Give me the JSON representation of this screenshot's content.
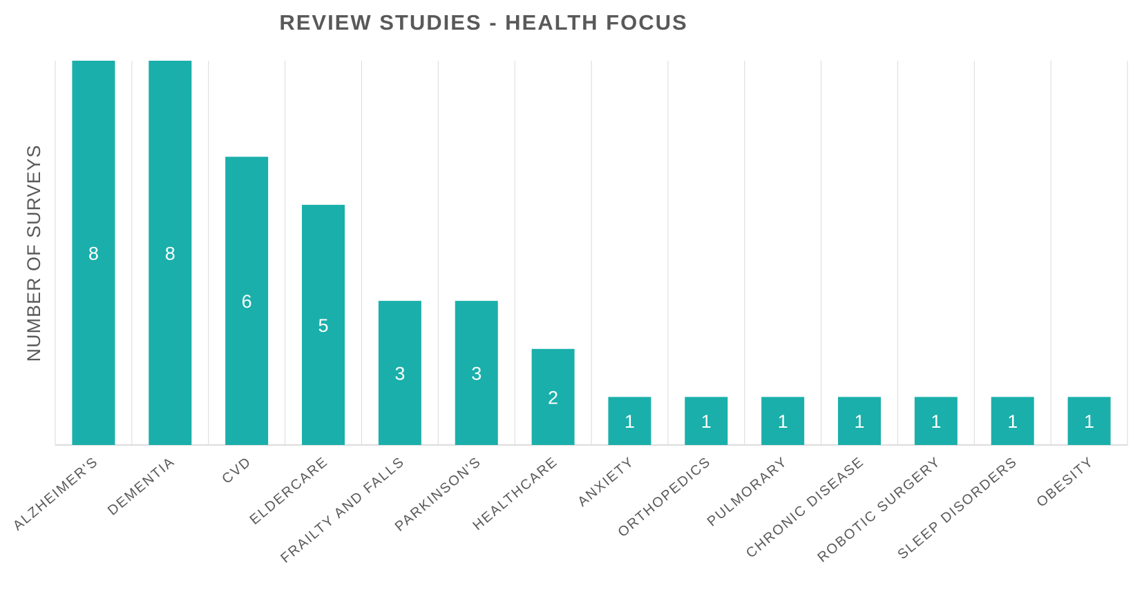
{
  "chart_data": {
    "type": "bar",
    "title": "REVIEW STUDIES - HEALTH FOCUS",
    "xlabel": "",
    "ylabel": "NUMBER OF SURVEYS",
    "ylim": [
      0,
      8
    ],
    "grid": "vertical separators",
    "legend": "none",
    "bar_color": "#1AAFAA",
    "categories": [
      "ALZHEIMER'S",
      "DEMENTIA",
      "CVD",
      "ELDERCARE",
      "FRAILTY AND FALLS",
      "PARKINSON'S",
      "HEALTHCARE",
      "ANXIETY",
      "ORTHOPEDICS",
      "PULMORARY",
      "CHRONIC DISEASE",
      "ROBOTIC SURGERY",
      "SLEEP DISORDERS",
      "OBESITY"
    ],
    "values": [
      8,
      8,
      6,
      5,
      3,
      3,
      2,
      1,
      1,
      1,
      1,
      1,
      1,
      1
    ]
  }
}
